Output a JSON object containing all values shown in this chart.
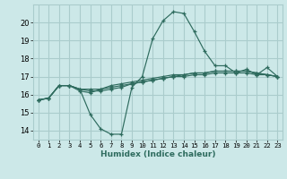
{
  "xlabel": "Humidex (Indice chaleur)",
  "background_color": "#cce8e8",
  "grid_color": "#aacccc",
  "line_color": "#2e6b5e",
  "xlim": [
    -0.5,
    23.5
  ],
  "ylim": [
    13.5,
    21.0
  ],
  "yticks": [
    14,
    15,
    16,
    17,
    18,
    19,
    20
  ],
  "xticks": [
    0,
    1,
    2,
    3,
    4,
    5,
    6,
    7,
    8,
    9,
    10,
    11,
    12,
    13,
    14,
    15,
    16,
    17,
    18,
    19,
    20,
    21,
    22,
    23
  ],
  "series": [
    [
      15.7,
      15.8,
      16.5,
      16.5,
      16.3,
      14.9,
      14.1,
      13.8,
      13.8,
      16.4,
      17.0,
      19.1,
      20.1,
      20.6,
      20.5,
      19.5,
      18.4,
      17.6,
      17.6,
      17.2,
      17.4,
      17.1,
      17.5,
      17.0
    ],
    [
      15.7,
      15.8,
      16.5,
      16.5,
      16.2,
      16.1,
      16.3,
      16.5,
      16.6,
      16.7,
      16.8,
      16.9,
      17.0,
      17.1,
      17.1,
      17.2,
      17.2,
      17.3,
      17.3,
      17.3,
      17.3,
      17.2,
      17.1,
      17.0
    ],
    [
      15.7,
      15.8,
      16.5,
      16.5,
      16.3,
      16.2,
      16.2,
      16.3,
      16.4,
      16.6,
      16.7,
      16.8,
      16.9,
      17.0,
      17.1,
      17.2,
      17.2,
      17.3,
      17.3,
      17.3,
      17.3,
      17.2,
      17.1,
      17.0
    ],
    [
      15.7,
      15.8,
      16.5,
      16.5,
      16.3,
      16.3,
      16.3,
      16.4,
      16.5,
      16.6,
      16.7,
      16.8,
      16.9,
      17.0,
      17.0,
      17.1,
      17.1,
      17.2,
      17.2,
      17.2,
      17.2,
      17.1,
      17.1,
      17.0
    ]
  ]
}
